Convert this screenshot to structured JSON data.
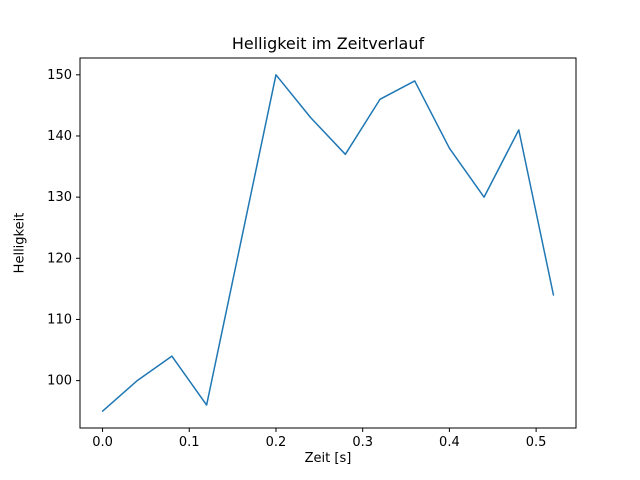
{
  "chart_data": {
    "type": "line",
    "title": "Helligkeit im Zeitverlauf",
    "xlabel": "Zeit [s]",
    "ylabel": "Helligkeit",
    "x": [
      0.0,
      0.04,
      0.08,
      0.12,
      0.16,
      0.2,
      0.24,
      0.28,
      0.32,
      0.36,
      0.4,
      0.44,
      0.48,
      0.52
    ],
    "y": [
      95,
      100,
      104,
      96,
      123,
      150,
      143,
      137,
      146,
      149,
      138,
      130,
      141,
      114
    ],
    "xlim": [
      -0.026,
      0.546
    ],
    "ylim": [
      92.25,
      152.75
    ],
    "xticks": [
      0.0,
      0.1,
      0.2,
      0.3,
      0.4,
      0.5
    ],
    "xtick_labels": [
      "0.0",
      "0.1",
      "0.2",
      "0.3",
      "0.4",
      "0.5"
    ],
    "yticks": [
      100,
      110,
      120,
      130,
      140,
      150
    ],
    "ytick_labels": [
      "100",
      "110",
      "120",
      "130",
      "140",
      "150"
    ],
    "line_color": "#1f77b4",
    "axis_color": "#000000",
    "background": "#ffffff",
    "grid": false,
    "legend": null
  }
}
